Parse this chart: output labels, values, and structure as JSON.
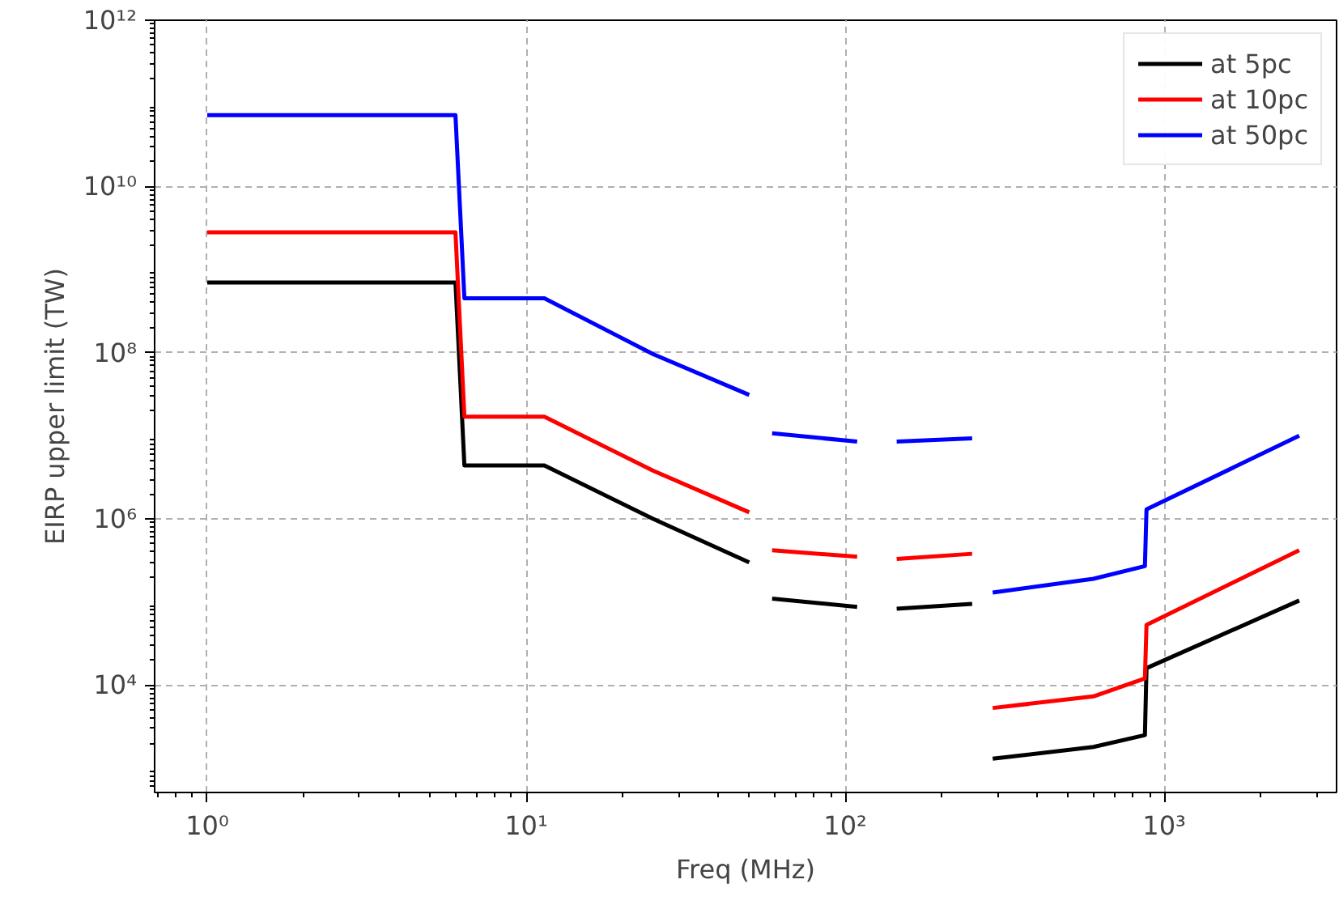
{
  "chart_data": {
    "type": "line",
    "xlabel": "Freq (MHz)",
    "ylabel": "EIRP upper limit (TW)",
    "log": "xy",
    "grid": true,
    "legend": "top right",
    "line_style": "solid",
    "xlim": [
      0.684,
      3470
    ],
    "ylim": [
      510,
      1000000000000.0
    ],
    "xticks": [
      {
        "value": 1,
        "label": "10⁰"
      },
      {
        "value": 10,
        "label": "10¹"
      },
      {
        "value": 100,
        "label": "10²"
      },
      {
        "value": 1000,
        "label": "10³"
      }
    ],
    "yticks": [
      {
        "value": 10000,
        "label": "10⁴"
      },
      {
        "value": 1000000,
        "label": "10⁶"
      },
      {
        "value": 100000000,
        "label": "10⁸"
      },
      {
        "value": 10000000000,
        "label": "10¹⁰"
      },
      {
        "value": 1000000000000,
        "label": "10¹²"
      }
    ],
    "x": [
      1,
      6,
      6.4,
      11.4,
      25,
      50,
      55,
      59,
      109,
      125,
      145,
      250,
      270,
      290,
      600,
      870,
      880,
      2650
    ],
    "series": [
      {
        "name": "at 5pc",
        "color": "#000000",
        "values": [
          700000000.0,
          700000000.0,
          4400000.0,
          4400000.0,
          1000000.0,
          300000.0,
          null,
          110000.0,
          87000.0,
          null,
          83000.0,
          95000.0,
          null,
          1300.0,
          1800.0,
          2500.0,
          16000.0,
          104000.0
        ]
      },
      {
        "name": "at 10pc",
        "color": "#ff0000",
        "values": [
          2800000000.0,
          2800000000.0,
          17000000.0,
          17000000.0,
          3800000.0,
          1200000.0,
          null,
          420000.0,
          350000.0,
          null,
          330000.0,
          380000.0,
          null,
          5300.0,
          7300.0,
          12000.0,
          53000.0,
          420000.0
        ]
      },
      {
        "name": "at 50pc",
        "color": "#0000ff",
        "values": [
          72000000000.0,
          72000000000.0,
          450000000.0,
          450000000.0,
          96000000.0,
          31000000.0,
          null,
          10700000.0,
          8500000.0,
          null,
          8500000.0,
          9300000.0,
          null,
          130000.0,
          190000.0,
          270000.0,
          1300000.0,
          10000000.0
        ]
      }
    ]
  }
}
